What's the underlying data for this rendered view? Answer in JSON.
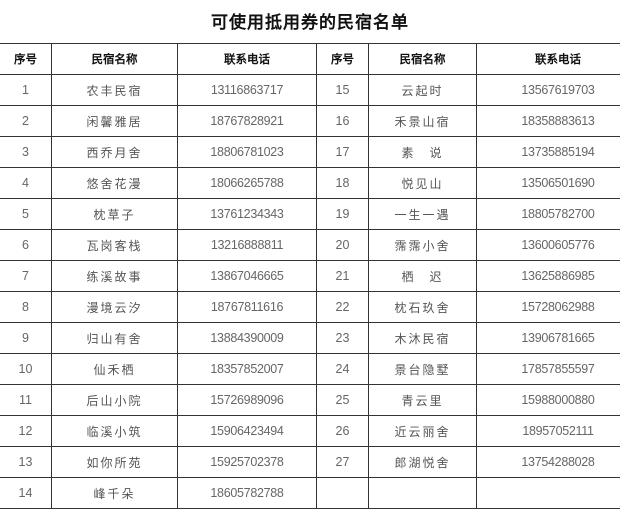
{
  "title": "可使用抵用券的民宿名单",
  "headers": [
    "序号",
    "民宿名称",
    "联系电话",
    "序号",
    "民宿名称",
    "联系电话"
  ],
  "left": [
    {
      "no": "1",
      "name": "农丰民宿",
      "phone": "13116863717"
    },
    {
      "no": "2",
      "name": "闲馨雅居",
      "phone": "18767828921"
    },
    {
      "no": "3",
      "name": "西乔月舍",
      "phone": "18806781023"
    },
    {
      "no": "4",
      "name": "悠舍花漫",
      "phone": "18066265788"
    },
    {
      "no": "5",
      "name": "枕草子",
      "phone": "13761234343"
    },
    {
      "no": "6",
      "name": "瓦岗客栈",
      "phone": "13216888811"
    },
    {
      "no": "7",
      "name": "练溪故事",
      "phone": "13867046665"
    },
    {
      "no": "8",
      "name": "漫境云汐",
      "phone": "18767811616"
    },
    {
      "no": "9",
      "name": "归山有舍",
      "phone": "13884390009"
    },
    {
      "no": "10",
      "name": "仙禾栖",
      "phone": "18357852007"
    },
    {
      "no": "11",
      "name": "后山小院",
      "phone": "15726989096"
    },
    {
      "no": "12",
      "name": "临溪小筑",
      "phone": "15906423494"
    },
    {
      "no": "13",
      "name": "如你所苑",
      "phone": "15925702378"
    },
    {
      "no": "14",
      "name": "峰千朵",
      "phone": "18605782788"
    }
  ],
  "right": [
    {
      "no": "15",
      "name": "云起时",
      "phone": "13567619703"
    },
    {
      "no": "16",
      "name": "禾景山宿",
      "phone": "18358883613"
    },
    {
      "no": "17",
      "name": "素　说",
      "phone": "13735885194"
    },
    {
      "no": "18",
      "name": "悦见山",
      "phone": "13506501690"
    },
    {
      "no": "19",
      "name": "一生一遇",
      "phone": "18805782700"
    },
    {
      "no": "20",
      "name": "霈霈小舍",
      "phone": "13600605776"
    },
    {
      "no": "21",
      "name": "栖　迟",
      "phone": "13625886985"
    },
    {
      "no": "22",
      "name": "枕石玖舍",
      "phone": "15728062988"
    },
    {
      "no": "23",
      "name": "木沐民宿",
      "phone": "13906781665"
    },
    {
      "no": "24",
      "name": "景台隐墅",
      "phone": "17857855597"
    },
    {
      "no": "25",
      "name": "青云里",
      "phone": "15988000880"
    },
    {
      "no": "26",
      "name": "近云丽舍",
      "phone": "18957052111"
    },
    {
      "no": "27",
      "name": "郎湖悦舍",
      "phone": "13754288028"
    }
  ]
}
